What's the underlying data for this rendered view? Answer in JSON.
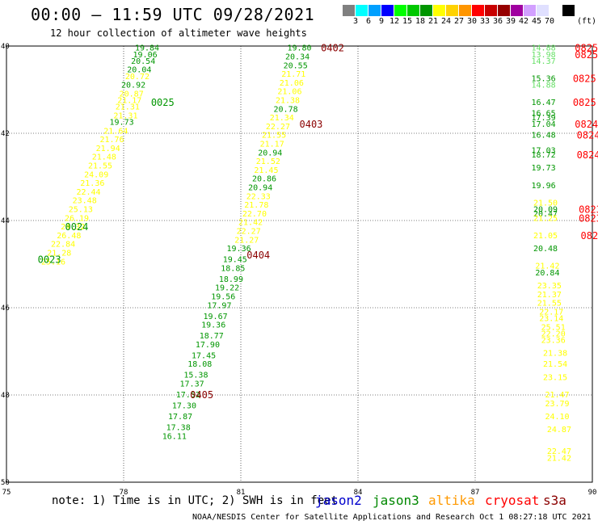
{
  "title": "00:00 — 11:59 UTC 09/28/2021",
  "subtitle": "12 hour collection of altimeter wave heights",
  "colorbar": {
    "unit": "(ft)",
    "colors": [
      "#808080",
      "#00ffff",
      "#00a0ff",
      "#0000ff",
      "#00ff00",
      "#00c800",
      "#009600",
      "#ffff00",
      "#ffd200",
      "#ff9600",
      "#ff0000",
      "#c80000",
      "#960000",
      "#a000a0",
      "#d2a0ff",
      "#e0e0ff",
      "#ffffff",
      "#000000"
    ],
    "labels": [
      "3",
      "6",
      "9",
      "12",
      "15",
      "18",
      "21",
      "24",
      "27",
      "30",
      "33",
      "36",
      "39",
      "42",
      "45",
      "70"
    ]
  },
  "map": {
    "lon_range": [
      75,
      90
    ],
    "lat_range": [
      40,
      50
    ],
    "x_ticks": [
      "75",
      "78",
      "81",
      "84",
      "87",
      "90"
    ],
    "y_ticks": [
      "40",
      "42",
      "44",
      "46",
      "48",
      "50"
    ],
    "colors": {
      "yellow": "#ffff00",
      "green": "#009600",
      "lightgreen": "#66e066",
      "red": "#ff0000",
      "darkred": "#8b0000"
    },
    "tracks": [
      {
        "name": "0025",
        "time_color": "green",
        "time_at": [
          78.7,
          41.3
        ],
        "points": [
          {
            "lon": 78.6,
            "lat": 40.05,
            "v": "19.84",
            "c": "green"
          },
          {
            "lon": 78.55,
            "lat": 40.2,
            "v": "19.06",
            "c": "green"
          },
          {
            "lon": 78.5,
            "lat": 40.35,
            "v": "20.54",
            "c": "green"
          },
          {
            "lon": 78.4,
            "lat": 40.55,
            "v": "20.04",
            "c": "green"
          },
          {
            "lon": 78.35,
            "lat": 40.7,
            "v": "20.72",
            "c": "yellow"
          },
          {
            "lon": 78.25,
            "lat": 40.9,
            "v": "20.92",
            "c": "green"
          },
          {
            "lon": 78.2,
            "lat": 41.1,
            "v": "20.87",
            "c": "yellow"
          },
          {
            "lon": 78.15,
            "lat": 41.25,
            "v": "21.17",
            "c": "yellow"
          },
          {
            "lon": 78.1,
            "lat": 41.4,
            "v": "21.31",
            "c": "yellow"
          },
          {
            "lon": 78.05,
            "lat": 41.6,
            "v": "21.31",
            "c": "yellow"
          },
          {
            "lon": 77.95,
            "lat": 41.75,
            "v": "19.73",
            "c": "green"
          },
          {
            "lon": 77.8,
            "lat": 41.95,
            "v": "21.64",
            "c": "yellow"
          },
          {
            "lon": 77.7,
            "lat": 42.15,
            "v": "21.76",
            "c": "yellow"
          },
          {
            "lon": 77.6,
            "lat": 42.35,
            "v": "21.94",
            "c": "yellow"
          },
          {
            "lon": 77.5,
            "lat": 42.55,
            "v": "21.48",
            "c": "yellow"
          },
          {
            "lon": 77.4,
            "lat": 42.75,
            "v": "21.55",
            "c": "yellow"
          },
          {
            "lon": 77.3,
            "lat": 42.95,
            "v": "24.09",
            "c": "yellow"
          },
          {
            "lon": 77.2,
            "lat": 43.15,
            "v": "21.36",
            "c": "yellow"
          },
          {
            "lon": 77.1,
            "lat": 43.35,
            "v": "22.44",
            "c": "yellow"
          },
          {
            "lon": 77.0,
            "lat": 43.55,
            "v": "23.48",
            "c": "yellow"
          },
          {
            "lon": 76.9,
            "lat": 43.75,
            "v": "25.13",
            "c": "yellow"
          },
          {
            "lon": 76.8,
            "lat": 43.95,
            "v": "26.19",
            "c": "yellow"
          },
          {
            "lon": 76.7,
            "lat": 44.15,
            "v": "24.32",
            "c": "yellow"
          },
          {
            "lon": 76.6,
            "lat": 44.35,
            "v": "26.48",
            "c": "yellow"
          },
          {
            "lon": 76.45,
            "lat": 44.55,
            "v": "22.84",
            "c": "yellow"
          },
          {
            "lon": 76.35,
            "lat": 44.75,
            "v": "21.28",
            "c": "yellow"
          },
          {
            "lon": 76.2,
            "lat": 44.95,
            "v": "25.16",
            "c": "yellow"
          }
        ]
      },
      {
        "name": "0024",
        "time_color": "green",
        "time_at": [
          76.5,
          44.15
        ],
        "points": []
      },
      {
        "name": "0023",
        "time_color": "green",
        "time_at": [
          75.8,
          44.9
        ],
        "points": []
      },
      {
        "name": "0402",
        "time_color": "darkred",
        "time_at": [
          83.05,
          40.05
        ],
        "points": [
          {
            "lon": 82.5,
            "lat": 40.05,
            "v": "19.80",
            "c": "green"
          },
          {
            "lon": 82.45,
            "lat": 40.25,
            "v": "20.34",
            "c": "green"
          },
          {
            "lon": 82.4,
            "lat": 40.45,
            "v": "20.55",
            "c": "green"
          },
          {
            "lon": 82.35,
            "lat": 40.65,
            "v": "21.71",
            "c": "yellow"
          },
          {
            "lon": 82.3,
            "lat": 40.85,
            "v": "21.06",
            "c": "yellow"
          },
          {
            "lon": 82.25,
            "lat": 41.05,
            "v": "21.06",
            "c": "yellow"
          },
          {
            "lon": 82.2,
            "lat": 41.25,
            "v": "21.38",
            "c": "yellow"
          },
          {
            "lon": 82.15,
            "lat": 41.45,
            "v": "20.78",
            "c": "green"
          },
          {
            "lon": 82.05,
            "lat": 41.65,
            "v": "21.34",
            "c": "yellow"
          },
          {
            "lon": 81.95,
            "lat": 41.85,
            "v": "22.27",
            "c": "yellow"
          },
          {
            "lon": 81.85,
            "lat": 42.05,
            "v": "21.55",
            "c": "yellow"
          },
          {
            "lon": 81.8,
            "lat": 42.25,
            "v": "21.17",
            "c": "yellow"
          },
          {
            "lon": 81.75,
            "lat": 42.45,
            "v": "20.94",
            "c": "green"
          },
          {
            "lon": 81.7,
            "lat": 42.65,
            "v": "21.52",
            "c": "yellow"
          },
          {
            "lon": 81.65,
            "lat": 42.85,
            "v": "21.45",
            "c": "yellow"
          },
          {
            "lon": 81.6,
            "lat": 43.05,
            "v": "20.86",
            "c": "green"
          },
          {
            "lon": 81.5,
            "lat": 43.25,
            "v": "20.94",
            "c": "green"
          },
          {
            "lon": 81.45,
            "lat": 43.45,
            "v": "22.33",
            "c": "yellow"
          },
          {
            "lon": 81.4,
            "lat": 43.65,
            "v": "21.78",
            "c": "yellow"
          },
          {
            "lon": 81.35,
            "lat": 43.85,
            "v": "22.70",
            "c": "yellow"
          },
          {
            "lon": 81.25,
            "lat": 44.05,
            "v": "21.42",
            "c": "yellow"
          },
          {
            "lon": 81.2,
            "lat": 44.25,
            "v": "22.27",
            "c": "yellow"
          },
          {
            "lon": 81.15,
            "lat": 44.45,
            "v": "21.27",
            "c": "yellow"
          }
        ]
      },
      {
        "name": "0403",
        "time_color": "darkred",
        "time_at": [
          82.5,
          41.8
        ],
        "points": []
      },
      {
        "name": "0404",
        "time_color": "darkred",
        "time_at": [
          81.15,
          44.8
        ],
        "points": [
          {
            "lon": 80.95,
            "lat": 44.65,
            "v": "19.36",
            "c": "green"
          },
          {
            "lon": 80.85,
            "lat": 44.9,
            "v": "19.45",
            "c": "green"
          },
          {
            "lon": 80.8,
            "lat": 45.1,
            "v": "18.85",
            "c": "green"
          },
          {
            "lon": 80.75,
            "lat": 45.35,
            "v": "18.99",
            "c": "green"
          },
          {
            "lon": 80.65,
            "lat": 45.55,
            "v": "19.22",
            "c": "green"
          },
          {
            "lon": 80.55,
            "lat": 45.75,
            "v": "19.56",
            "c": "green"
          },
          {
            "lon": 80.45,
            "lat": 45.95,
            "v": "17.97",
            "c": "green"
          },
          {
            "lon": 80.35,
            "lat": 46.2,
            "v": "19.67",
            "c": "green"
          },
          {
            "lon": 80.3,
            "lat": 46.4,
            "v": "19.36",
            "c": "green"
          },
          {
            "lon": 80.25,
            "lat": 46.65,
            "v": "18.77",
            "c": "green"
          },
          {
            "lon": 80.15,
            "lat": 46.85,
            "v": "17.90",
            "c": "green"
          },
          {
            "lon": 80.05,
            "lat": 47.1,
            "v": "17.45",
            "c": "green"
          },
          {
            "lon": 79.95,
            "lat": 47.3,
            "v": "18.08",
            "c": "green"
          },
          {
            "lon": 79.85,
            "lat": 47.55,
            "v": "15.38",
            "c": "green"
          },
          {
            "lon": 79.75,
            "lat": 47.75,
            "v": "17.37",
            "c": "green"
          },
          {
            "lon": 79.65,
            "lat": 48.0,
            "v": "17.52",
            "c": "green"
          },
          {
            "lon": 79.55,
            "lat": 48.25,
            "v": "17.30",
            "c": "green"
          },
          {
            "lon": 79.45,
            "lat": 48.5,
            "v": "17.87",
            "c": "green"
          },
          {
            "lon": 79.4,
            "lat": 48.75,
            "v": "17.38",
            "c": "green"
          },
          {
            "lon": 79.3,
            "lat": 48.95,
            "v": "16.11",
            "c": "green"
          }
        ]
      },
      {
        "name": "0405",
        "time_color": "darkred",
        "time_at": [
          79.7,
          48.0
        ],
        "points": []
      },
      {
        "name": "east",
        "time_color": "red",
        "time_at": [
          89.9,
          40.05
        ],
        "points": [
          {
            "lon": 88.75,
            "lat": 40.05,
            "v": "14.88",
            "c": "lightgreen"
          },
          {
            "lon": 88.75,
            "lat": 40.2,
            "v": "13.98",
            "c": "lightgreen"
          },
          {
            "lon": 88.75,
            "lat": 40.35,
            "v": "14.37",
            "c": "lightgreen"
          },
          {
            "lon": 88.75,
            "lat": 40.75,
            "v": "15.36",
            "c": "green"
          },
          {
            "lon": 88.75,
            "lat": 40.9,
            "v": "14.88",
            "c": "lightgreen"
          },
          {
            "lon": 88.75,
            "lat": 41.3,
            "v": "16.47",
            "c": "green"
          },
          {
            "lon": 88.75,
            "lat": 41.55,
            "v": "16.65",
            "c": "green"
          },
          {
            "lon": 88.75,
            "lat": 41.65,
            "v": "17.39",
            "c": "green"
          },
          {
            "lon": 88.75,
            "lat": 41.8,
            "v": "17.04",
            "c": "green"
          },
          {
            "lon": 88.75,
            "lat": 42.05,
            "v": "16.48",
            "c": "green"
          },
          {
            "lon": 88.75,
            "lat": 42.4,
            "v": "17.03",
            "c": "green"
          },
          {
            "lon": 88.75,
            "lat": 42.5,
            "v": "18.72",
            "c": "green"
          },
          {
            "lon": 88.75,
            "lat": 42.8,
            "v": "19.73",
            "c": "green"
          },
          {
            "lon": 88.75,
            "lat": 43.2,
            "v": "19.96",
            "c": "green"
          },
          {
            "lon": 88.8,
            "lat": 43.6,
            "v": "21.50",
            "c": "yellow"
          },
          {
            "lon": 88.8,
            "lat": 43.75,
            "v": "20.09",
            "c": "green"
          },
          {
            "lon": 88.8,
            "lat": 43.85,
            "v": "20.47",
            "c": "green"
          },
          {
            "lon": 88.8,
            "lat": 43.95,
            "v": "21.25",
            "c": "yellow"
          },
          {
            "lon": 88.8,
            "lat": 44.35,
            "v": "21.05",
            "c": "yellow"
          },
          {
            "lon": 88.8,
            "lat": 44.65,
            "v": "20.48",
            "c": "green"
          },
          {
            "lon": 88.85,
            "lat": 45.05,
            "v": "21.42",
            "c": "yellow"
          },
          {
            "lon": 88.85,
            "lat": 45.2,
            "v": "20.84",
            "c": "green"
          },
          {
            "lon": 88.9,
            "lat": 45.5,
            "v": "23.35",
            "c": "yellow"
          },
          {
            "lon": 88.9,
            "lat": 45.7,
            "v": "21.37",
            "c": "yellow"
          },
          {
            "lon": 88.9,
            "lat": 45.9,
            "v": "21.55",
            "c": "yellow"
          },
          {
            "lon": 88.95,
            "lat": 46.1,
            "v": "22.17",
            "c": "yellow"
          },
          {
            "lon": 88.95,
            "lat": 46.25,
            "v": "23.14",
            "c": "yellow"
          },
          {
            "lon": 89.0,
            "lat": 46.45,
            "v": "25.51",
            "c": "yellow"
          },
          {
            "lon": 89.0,
            "lat": 46.6,
            "v": "22.20",
            "c": "yellow"
          },
          {
            "lon": 89.0,
            "lat": 46.75,
            "v": "23.36",
            "c": "yellow"
          },
          {
            "lon": 89.05,
            "lat": 47.05,
            "v": "21.38",
            "c": "yellow"
          },
          {
            "lon": 89.05,
            "lat": 47.3,
            "v": "21.54",
            "c": "yellow"
          },
          {
            "lon": 89.05,
            "lat": 47.6,
            "v": "23.15",
            "c": "yellow"
          },
          {
            "lon": 89.1,
            "lat": 48.0,
            "v": "21.47",
            "c": "yellow"
          },
          {
            "lon": 89.1,
            "lat": 48.2,
            "v": "23.79",
            "c": "yellow"
          },
          {
            "lon": 89.1,
            "lat": 48.5,
            "v": "24.10",
            "c": "yellow"
          },
          {
            "lon": 89.15,
            "lat": 48.8,
            "v": "24.87",
            "c": "yellow"
          },
          {
            "lon": 89.15,
            "lat": 49.3,
            "v": "22.47",
            "c": "yellow"
          },
          {
            "lon": 89.15,
            "lat": 49.45,
            "v": "21.42",
            "c": "yellow"
          }
        ]
      }
    ],
    "east_time_labels": [
      {
        "lon": 89.55,
        "lat": 40.05,
        "t": "0825",
        "c": "red"
      },
      {
        "lon": 89.55,
        "lat": 40.2,
        "t": "0825",
        "c": "red"
      },
      {
        "lon": 89.5,
        "lat": 40.75,
        "t": "0825",
        "c": "red"
      },
      {
        "lon": 89.5,
        "lat": 41.3,
        "t": "0825",
        "c": "red"
      },
      {
        "lon": 89.55,
        "lat": 41.8,
        "t": "0824",
        "c": "red"
      },
      {
        "lon": 89.6,
        "lat": 42.05,
        "t": "0824",
        "c": "red"
      },
      {
        "lon": 89.6,
        "lat": 42.5,
        "t": "0824",
        "c": "red"
      },
      {
        "lon": 89.65,
        "lat": 43.75,
        "t": "0823",
        "c": "red"
      },
      {
        "lon": 89.65,
        "lat": 43.95,
        "t": "0823",
        "c": "red"
      },
      {
        "lon": 89.7,
        "lat": 44.35,
        "t": "0823",
        "c": "red"
      }
    ]
  },
  "note": "note: 1) Time is in UTC; 2) SWH is in feet",
  "satellites": [
    {
      "name": "jason2",
      "color": "#0000cc"
    },
    {
      "name": "jason3",
      "color": "#008800"
    },
    {
      "name": "altika",
      "color": "#ff9900"
    },
    {
      "name": "cryosat",
      "color": "#ff0000"
    },
    {
      "name": "s3a",
      "color": "#8b0000"
    }
  ],
  "footer": "NOAA/NESDIS Center for Satellite Applications and Research   Oct  1 08:27:18 UTC 2021"
}
